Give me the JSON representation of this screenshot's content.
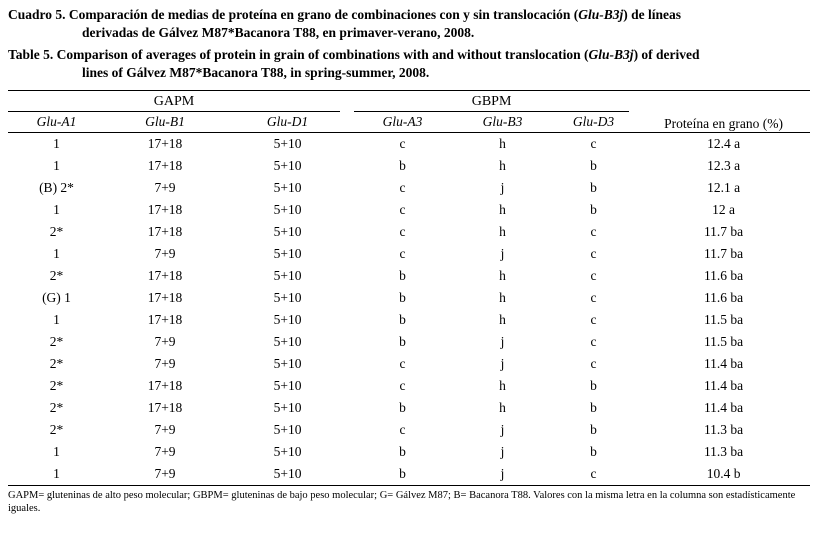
{
  "caption": {
    "es": {
      "line1_pre": "Cuadro 5. Comparación de medias de proteína en grano de combinaciones con y sin translocación (",
      "line1_italic": "Glu-B3j",
      "line1_post": ") de líneas",
      "line2": "derivadas de Gálvez M87*Bacanora T88, en primaver-verano, 2008."
    },
    "en": {
      "line1_pre": "Table 5. Comparison of averages of protein in grain of combinations with and without translocation (",
      "line1_italic": "Glu-B3j",
      "line1_post": ") of derived",
      "line2": "lines of Gálvez M87*Bacanora T88, in spring-summer, 2008."
    }
  },
  "table": {
    "groups": [
      {
        "label": "GAPM"
      },
      {
        "label": "GBPM"
      }
    ],
    "protein_header": "Proteína en grano (%)",
    "subheaders": [
      "Glu-A1",
      "Glu-B1",
      "Glu-D1",
      "Glu-A3",
      "Glu-B3",
      "Glu-D3"
    ],
    "rows": [
      [
        "1",
        "17+18",
        "5+10",
        "c",
        "h",
        "c",
        "12.4 a"
      ],
      [
        "1",
        "17+18",
        "5+10",
        "b",
        "h",
        "b",
        "12.3 a"
      ],
      [
        "(B) 2*",
        "7+9",
        "5+10",
        "c",
        "j",
        "b",
        "12.1 a"
      ],
      [
        "1",
        "17+18",
        "5+10",
        "c",
        "h",
        "b",
        "12 a"
      ],
      [
        "2*",
        "17+18",
        "5+10",
        "c",
        "h",
        "c",
        "11.7 ba"
      ],
      [
        "1",
        "7+9",
        "5+10",
        "c",
        "j",
        "c",
        "11.7 ba"
      ],
      [
        "2*",
        "17+18",
        "5+10",
        "b",
        "h",
        "c",
        "11.6 ba"
      ],
      [
        "(G) 1",
        "17+18",
        "5+10",
        "b",
        "h",
        "c",
        "11.6 ba"
      ],
      [
        "1",
        "17+18",
        "5+10",
        "b",
        "h",
        "c",
        "11.5 ba"
      ],
      [
        "2*",
        "7+9",
        "5+10",
        "b",
        "j",
        "c",
        "11.5 ba"
      ],
      [
        "2*",
        "7+9",
        "5+10",
        "c",
        "j",
        "c",
        "11.4 ba"
      ],
      [
        "2*",
        "17+18",
        "5+10",
        "c",
        "h",
        "b",
        "11.4 ba"
      ],
      [
        "2*",
        "17+18",
        "5+10",
        "b",
        "h",
        "b",
        "11.4 ba"
      ],
      [
        "2*",
        "7+9",
        "5+10",
        "c",
        "j",
        "b",
        "11.3 ba"
      ],
      [
        "1",
        "7+9",
        "5+10",
        "b",
        "j",
        "b",
        "11.3 ba"
      ],
      [
        "1",
        "7+9",
        "5+10",
        "b",
        "j",
        "c",
        "10.4 b"
      ]
    ]
  },
  "footnote": "GAPM= gluteninas de alto peso molecular; GBPM= gluteninas de bajo peso molecular; G= Gálvez M87; B= Bacanora T88. Valores con la misma letra en la columna son estadísticamente iguales."
}
